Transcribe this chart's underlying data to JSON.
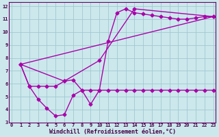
{
  "bg_color": "#cce8ec",
  "grid_color": "#9ec8d0",
  "line_color": "#aa00aa",
  "marker": "D",
  "ms": 2.5,
  "lw": 1.0,
  "line1_x": [
    1,
    2,
    3,
    4,
    5,
    6,
    7,
    8,
    9,
    10,
    11,
    12,
    13,
    14,
    15,
    16,
    17,
    18,
    19,
    20,
    21,
    22,
    23
  ],
  "line1_y": [
    7.5,
    5.8,
    4.8,
    4.1,
    3.5,
    3.6,
    5.1,
    5.5,
    4.4,
    5.5,
    9.3,
    11.5,
    11.8,
    11.5,
    11.4,
    11.3,
    11.2,
    11.1,
    11.0,
    11.0,
    11.1,
    11.2,
    11.2
  ],
  "line2_x": [
    1,
    2,
    3,
    4,
    5,
    6,
    7,
    8,
    9,
    10,
    11,
    12,
    13,
    14,
    15,
    16,
    17,
    18,
    19,
    20,
    21,
    22,
    23
  ],
  "line2_y": [
    7.5,
    5.8,
    5.8,
    5.8,
    5.8,
    6.2,
    6.3,
    5.5,
    5.5,
    5.5,
    5.5,
    5.5,
    5.5,
    5.5,
    5.5,
    5.5,
    5.5,
    5.5,
    5.5,
    5.5,
    5.5,
    5.5,
    5.5
  ],
  "line3_x": [
    1,
    6,
    10,
    14,
    23
  ],
  "line3_y": [
    7.5,
    6.2,
    7.8,
    11.8,
    11.2
  ],
  "line4_x": [
    1,
    23
  ],
  "line4_y": [
    7.5,
    11.2
  ],
  "xlim": [
    -0.3,
    23.3
  ],
  "ylim": [
    3,
    12.3
  ],
  "xticks": [
    0,
    1,
    2,
    3,
    4,
    5,
    6,
    7,
    8,
    9,
    10,
    11,
    12,
    13,
    14,
    15,
    16,
    17,
    18,
    19,
    20,
    21,
    22,
    23
  ],
  "yticks": [
    3,
    4,
    5,
    6,
    7,
    8,
    9,
    10,
    11,
    12
  ],
  "xlabel": "Windchill (Refroidissement éolien,°C)",
  "tick_fontsize": 5.0,
  "xlabel_fontsize": 6.0
}
